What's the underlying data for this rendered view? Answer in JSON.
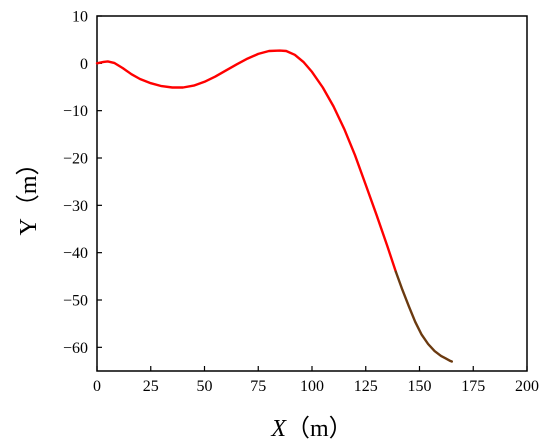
{
  "chart_data": {
    "type": "line",
    "title": "",
    "xlabel": "X（m）",
    "xlabel_var": "X",
    "xlabel_unit": "（m）",
    "ylabel": "Y（m）",
    "ylabel_var": "Y",
    "ylabel_unit": "（m）",
    "xlim": [
      0,
      200
    ],
    "ylim": [
      -65,
      10
    ],
    "xticks": [
      0,
      25,
      50,
      75,
      100,
      125,
      150,
      175,
      200
    ],
    "yticks": [
      10,
      0,
      -10,
      -20,
      -30,
      -40,
      -50,
      -60
    ],
    "xtick_labels": [
      "0",
      "25",
      "50",
      "75",
      "100",
      "125",
      "150",
      "175",
      "200"
    ],
    "ytick_labels": [
      "10",
      "0",
      "−10",
      "−20",
      "−30",
      "−40",
      "−50",
      "−60"
    ],
    "grid": false,
    "legend": "none",
    "series": [
      {
        "color": "#ff0000",
        "x": [
          0,
          3,
          5,
          8,
          12,
          16,
          20,
          25,
          30,
          35,
          40,
          45,
          50,
          55,
          60,
          65,
          70,
          75,
          80,
          85,
          88,
          92,
          96,
          100,
          105,
          110,
          115,
          120,
          125,
          130,
          135,
          139
        ],
        "y": [
          0,
          0.3,
          0.4,
          0.1,
          -1.0,
          -2.3,
          -3.3,
          -4.2,
          -4.8,
          -5.1,
          -5.1,
          -4.7,
          -3.9,
          -2.8,
          -1.5,
          -0.2,
          1.0,
          2.0,
          2.6,
          2.7,
          2.6,
          1.8,
          0.3,
          -1.8,
          -5.1,
          -9.1,
          -13.9,
          -19.4,
          -25.7,
          -32.0,
          -38.6,
          -44.0
        ]
      },
      {
        "color": "#6b3a10",
        "x": [
          139,
          142,
          145,
          148,
          151,
          154,
          157,
          160,
          162,
          164,
          165
        ],
        "y": [
          -44.0,
          -47.8,
          -51.3,
          -54.6,
          -57.3,
          -59.3,
          -60.8,
          -61.8,
          -62.3,
          -62.8,
          -63.0
        ]
      }
    ]
  }
}
